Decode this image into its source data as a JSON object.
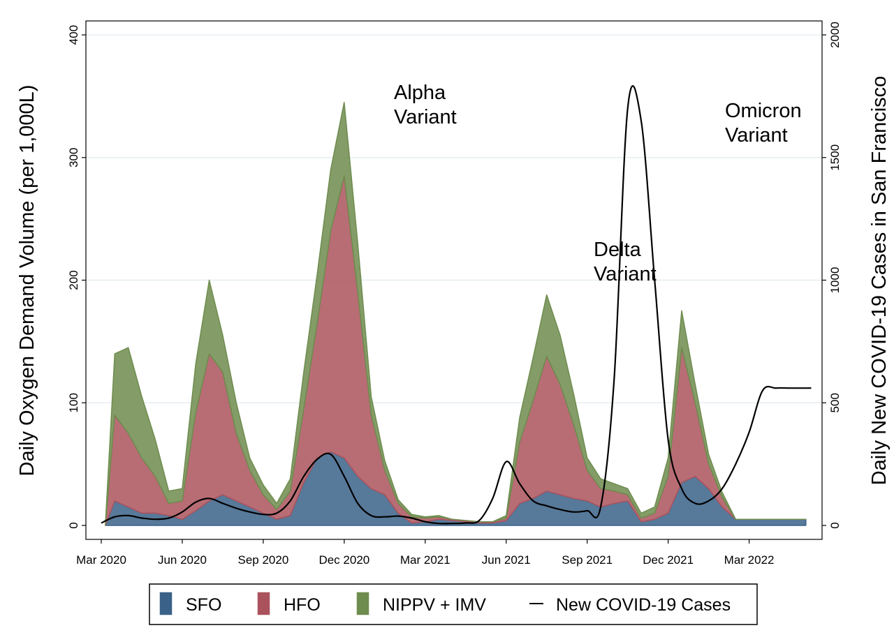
{
  "chart_data": {
    "type": "area",
    "xlabel": "",
    "ylabel": "Daily Oxygen Demand Volume (per 1,000L)",
    "y2label": "Daily New COVID-19 Cases in San Francisco",
    "x_ticks": [
      "Mar 2020",
      "Jun 2020",
      "Sep 2020",
      "Dec 2020",
      "Mar 2021",
      "Jun 2021",
      "Sep 2021",
      "Dec 2021",
      "Mar 2022"
    ],
    "ylim": [
      0,
      400
    ],
    "y_ticks": [
      "0",
      "100",
      "200",
      "300",
      "400"
    ],
    "y2lim": [
      0,
      2000
    ],
    "y2_ticks": [
      "0",
      "500",
      "1000",
      "1500",
      "2000"
    ],
    "grid": true,
    "legend_position": "bottom",
    "colors": {
      "SFO": "#3a6188",
      "HFO": "#ab535d",
      "NIPPV + IMV": "#6e8c4e",
      "New COVID-19 Cases": "#000000"
    },
    "stacked": true,
    "series": [
      {
        "name": "SFO",
        "x": [
          0.15,
          0.5,
          1.0,
          1.5,
          2.0,
          2.5,
          3.0,
          3.5,
          4.0,
          4.5,
          5.0,
          5.5,
          6.0,
          6.5,
          7.0,
          7.5,
          8.0,
          8.5,
          9.0,
          9.5,
          10.0,
          10.5,
          11.0,
          11.5,
          12.0,
          12.5,
          13.0,
          13.5,
          14.0,
          14.5,
          15.0,
          15.5,
          16.0,
          16.5,
          17.0,
          17.5,
          18.0,
          18.5,
          19.0,
          19.5,
          20.0,
          20.5,
          21.0,
          21.5,
          22.0,
          22.5,
          23.0,
          23.5,
          24.0,
          24.5,
          25.0,
          25.5,
          26.0,
          26.1
        ],
        "values": [
          0,
          20,
          15,
          10,
          10,
          8,
          5,
          12,
          20,
          25,
          20,
          15,
          10,
          5,
          8,
          35,
          55,
          60,
          55,
          40,
          30,
          25,
          10,
          2,
          3,
          5,
          4,
          3,
          2,
          2,
          4,
          18,
          22,
          28,
          25,
          22,
          20,
          15,
          18,
          20,
          3,
          5,
          10,
          35,
          40,
          30,
          15,
          5,
          5,
          5,
          5,
          5,
          5,
          5
        ]
      },
      {
        "name": "HFO",
        "x": [
          0.15,
          0.5,
          1.0,
          1.5,
          2.0,
          2.5,
          3.0,
          3.5,
          4.0,
          4.5,
          5.0,
          5.5,
          6.0,
          6.5,
          7.0,
          7.5,
          8.0,
          8.5,
          9.0,
          9.5,
          10.0,
          10.5,
          11.0,
          11.5,
          12.0,
          12.5,
          13.0,
          13.5,
          14.0,
          14.5,
          15.0,
          15.5,
          16.0,
          16.5,
          17.0,
          17.5,
          18.0,
          18.5,
          19.0,
          19.5,
          20.0,
          20.5,
          21.0,
          21.5,
          22.0,
          22.5,
          23.0,
          23.5,
          24.0,
          24.5,
          25.0,
          25.5,
          26.0,
          26.1
        ],
        "values": [
          0,
          70,
          60,
          45,
          30,
          10,
          15,
          80,
          120,
          100,
          55,
          30,
          15,
          8,
          20,
          60,
          110,
          180,
          230,
          150,
          60,
          20,
          8,
          5,
          3,
          2,
          1,
          1,
          1,
          1,
          2,
          50,
          80,
          110,
          90,
          60,
          25,
          15,
          10,
          5,
          3,
          5,
          30,
          110,
          60,
          20,
          8,
          0,
          0,
          0,
          0,
          0,
          0,
          0
        ]
      },
      {
        "name": "NIPPV + IMV",
        "x": [
          0.15,
          0.5,
          1.0,
          1.5,
          2.0,
          2.5,
          3.0,
          3.5,
          4.0,
          4.5,
          5.0,
          5.5,
          6.0,
          6.5,
          7.0,
          7.5,
          8.0,
          8.5,
          9.0,
          9.5,
          10.0,
          10.5,
          11.0,
          11.5,
          12.0,
          12.5,
          13.0,
          13.5,
          14.0,
          14.5,
          15.0,
          15.5,
          16.0,
          16.5,
          17.0,
          17.5,
          18.0,
          18.5,
          19.0,
          19.5,
          20.0,
          20.5,
          21.0,
          21.5,
          22.0,
          22.5,
          23.0,
          23.5,
          24.0,
          24.5,
          25.0,
          25.5,
          26.0,
          26.1
        ],
        "values": [
          0,
          50,
          70,
          50,
          30,
          10,
          10,
          40,
          60,
          30,
          25,
          10,
          8,
          5,
          10,
          30,
          40,
          50,
          60,
          40,
          15,
          8,
          3,
          2,
          1,
          1,
          0,
          0,
          0,
          0,
          2,
          20,
          35,
          50,
          40,
          25,
          10,
          8,
          6,
          5,
          4,
          5,
          15,
          30,
          15,
          8,
          4,
          0,
          0,
          0,
          0,
          0,
          0,
          0
        ]
      },
      {
        "name": "New COVID-19 Cases",
        "axis": "right",
        "x": [
          0,
          0.5,
          1.0,
          1.5,
          2.0,
          2.5,
          3.0,
          3.5,
          4.0,
          4.5,
          5.0,
          5.5,
          6.0,
          6.5,
          7.0,
          7.5,
          8.0,
          8.5,
          9.0,
          9.5,
          10.0,
          10.5,
          11.0,
          11.5,
          12.0,
          12.5,
          13.0,
          13.5,
          14.0,
          14.5,
          15.0,
          15.5,
          16.0,
          16.5,
          17.0,
          17.5,
          18.0,
          18.5,
          19.0,
          19.5,
          20.0,
          20.5,
          21.0,
          21.5,
          22.0,
          22.5,
          23.0,
          23.5,
          24.0,
          24.5,
          25.0,
          25.5,
          26.0,
          26.3
        ],
        "values": [
          10,
          35,
          40,
          30,
          25,
          30,
          55,
          95,
          110,
          90,
          70,
          55,
          45,
          50,
          100,
          200,
          270,
          290,
          200,
          90,
          40,
          35,
          38,
          30,
          15,
          8,
          8,
          10,
          20,
          110,
          260,
          170,
          100,
          80,
          65,
          55,
          60,
          75,
          600,
          1700,
          1650,
          1000,
          350,
          150,
          90,
          100,
          150,
          250,
          380,
          550,
          560,
          560,
          560,
          560
        ]
      }
    ],
    "annotations": [
      {
        "line1": "Alpha",
        "line2": "Variant"
      },
      {
        "line1": "Delta",
        "line2": "Variant"
      },
      {
        "line1": "Omicron",
        "line2": "Variant"
      }
    ]
  }
}
